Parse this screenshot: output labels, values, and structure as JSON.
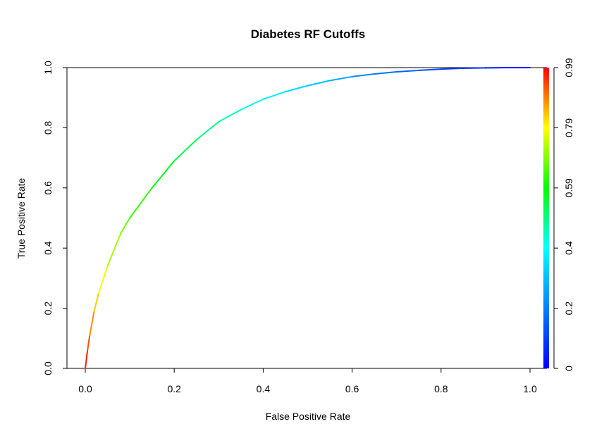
{
  "chart_data": {
    "type": "line",
    "title": "Diabetes RF Cutoffs",
    "xlabel": "False Positive Rate",
    "ylabel": "True Positive Rate",
    "xlim": [
      0,
      1
    ],
    "ylim": [
      0,
      1
    ],
    "x_ticks": [
      "0.0",
      "0.2",
      "0.4",
      "0.6",
      "0.8",
      "1.0"
    ],
    "y_ticks": [
      "0.0",
      "0.2",
      "0.4",
      "0.6",
      "0.8",
      "1.0"
    ],
    "grid": false,
    "colorbar": {
      "tick_labels": [
        "0",
        "0.2",
        "0.4",
        "0.59",
        "0.79",
        "0.99"
      ],
      "colors": [
        "#0000ff",
        "#00ffff",
        "#00ff00",
        "#ffff00",
        "#ff0000"
      ]
    },
    "series": [
      {
        "x": [
          0.0,
          0.005,
          0.01,
          0.02,
          0.03,
          0.05,
          0.08,
          0.1,
          0.15,
          0.2,
          0.25,
          0.3,
          0.35,
          0.4,
          0.45,
          0.5,
          0.55,
          0.6,
          0.65,
          0.7,
          0.75,
          0.8,
          0.85,
          0.9,
          0.95,
          1.0
        ],
        "y": [
          0.0,
          0.06,
          0.11,
          0.19,
          0.25,
          0.34,
          0.45,
          0.5,
          0.6,
          0.69,
          0.76,
          0.82,
          0.86,
          0.895,
          0.92,
          0.94,
          0.957,
          0.97,
          0.979,
          0.986,
          0.991,
          0.995,
          0.998,
          0.999,
          1.0,
          1.0
        ],
        "cutoff": [
          0.99,
          0.96,
          0.92,
          0.86,
          0.82,
          0.76,
          0.7,
          0.67,
          0.61,
          0.56,
          0.52,
          0.48,
          0.44,
          0.4,
          0.36,
          0.32,
          0.28,
          0.24,
          0.2,
          0.17,
          0.14,
          0.11,
          0.08,
          0.05,
          0.02,
          0.0
        ]
      }
    ]
  }
}
